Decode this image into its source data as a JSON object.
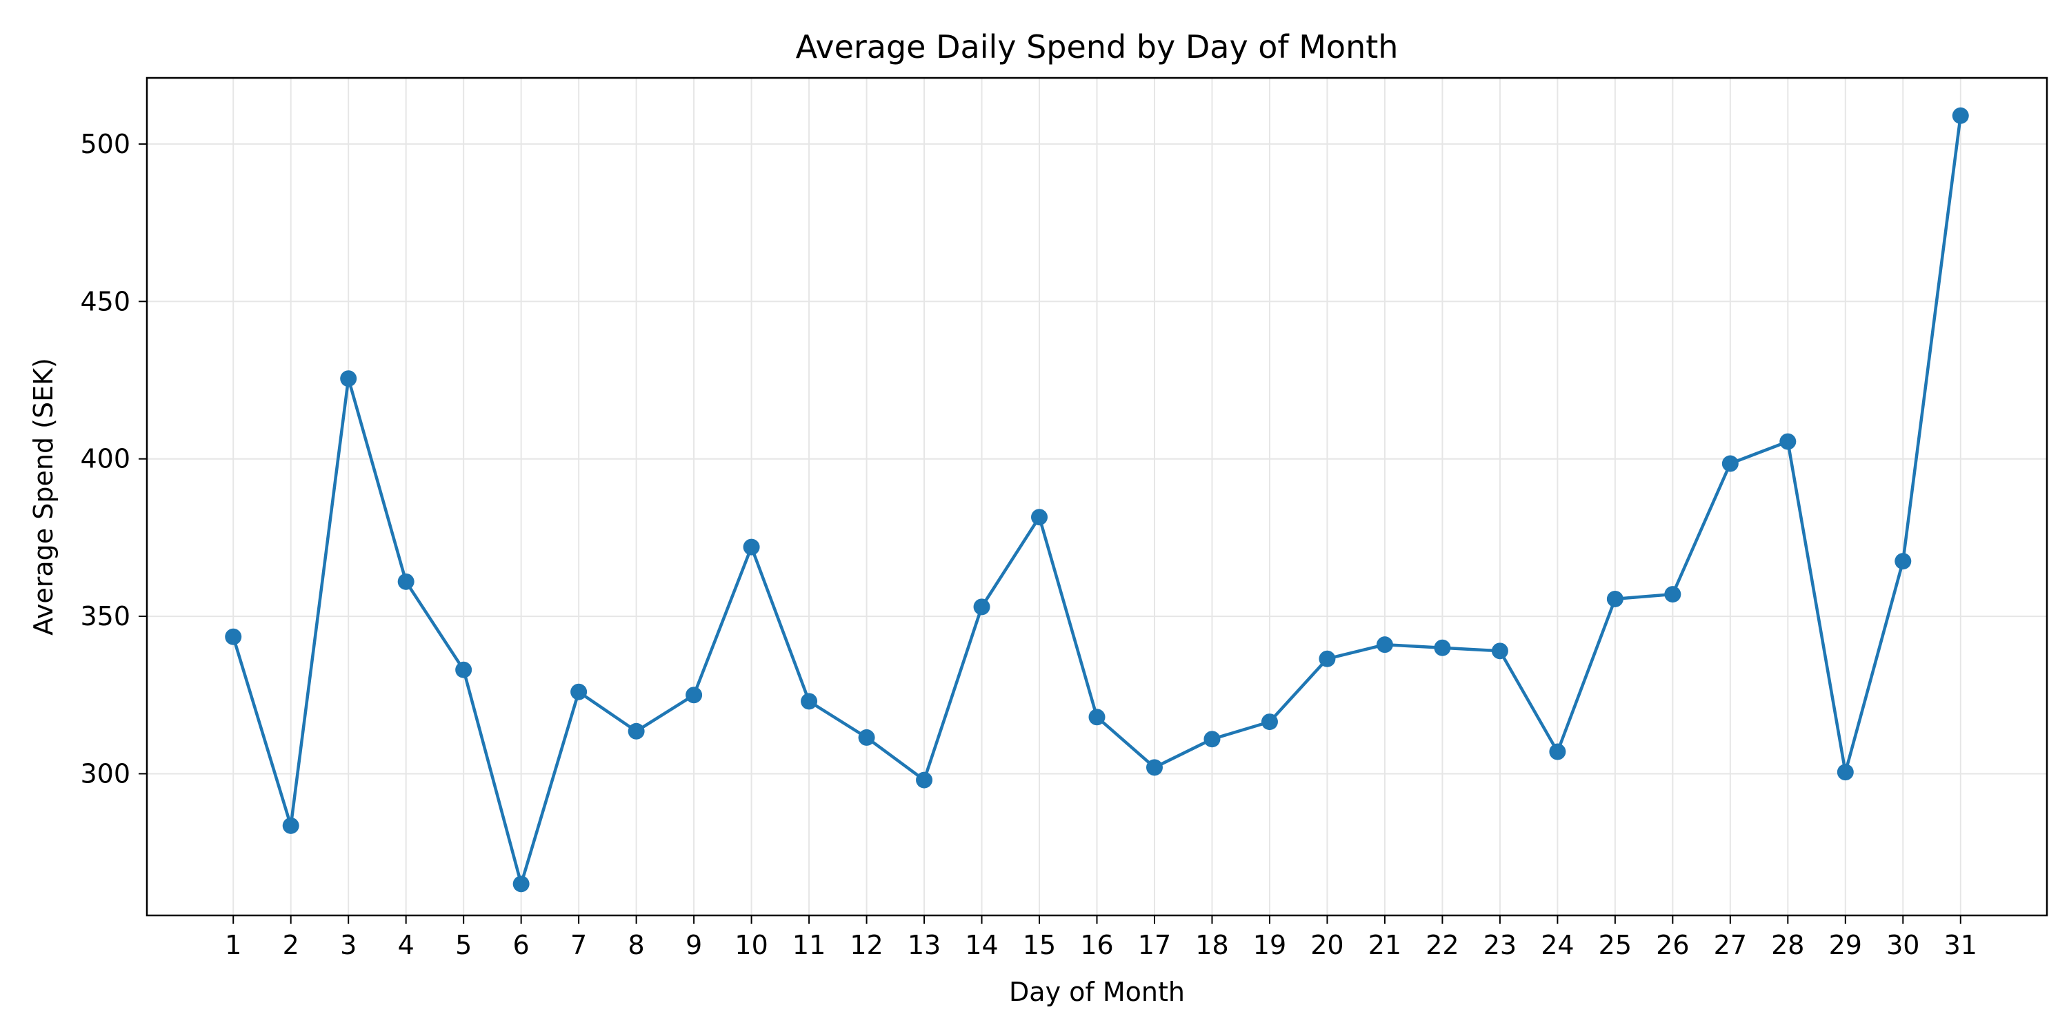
{
  "chart_data": {
    "type": "line",
    "title": "Average Daily Spend by Day of Month",
    "xlabel": "Day of Month",
    "ylabel": "Average Spend (SEK)",
    "xlim": [
      -0.5,
      32.5
    ],
    "ylim": [
      255,
      521
    ],
    "x_ticks": [
      1,
      2,
      3,
      4,
      5,
      6,
      7,
      8,
      9,
      10,
      11,
      12,
      13,
      14,
      15,
      16,
      17,
      18,
      19,
      20,
      21,
      22,
      23,
      24,
      25,
      26,
      27,
      28,
      29,
      30,
      31
    ],
    "y_ticks": [
      300,
      350,
      400,
      450,
      500
    ],
    "grid": true,
    "colors": {
      "series": "#1f77b4",
      "grid": "#e6e6e6",
      "axes": "#000000"
    },
    "series": [
      {
        "x": [
          1,
          2,
          3,
          4,
          5,
          6,
          7,
          8,
          9,
          10,
          11,
          12,
          13,
          14,
          15,
          16,
          17,
          18,
          19,
          20,
          21,
          22,
          23,
          24,
          25,
          26,
          27,
          28,
          29,
          30,
          31
        ],
        "values": [
          343.5,
          283.5,
          425.5,
          361,
          333,
          265,
          326,
          313.5,
          325,
          372,
          323,
          311.5,
          298,
          353,
          381.5,
          318,
          302,
          311,
          316.5,
          336.5,
          341,
          340,
          339,
          307,
          355.5,
          357,
          398.5,
          405.5,
          300.5,
          367.5,
          509
        ]
      }
    ]
  }
}
